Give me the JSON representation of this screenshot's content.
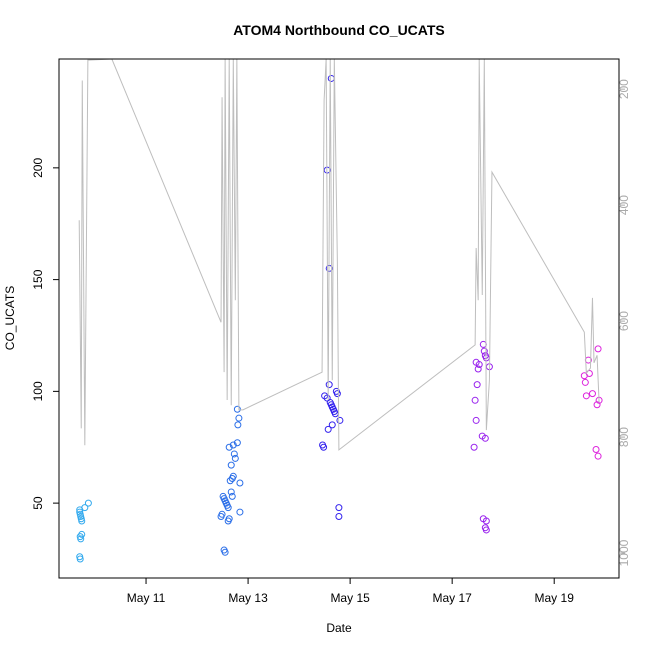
{
  "chart_data": {
    "type": "scatter",
    "title": "ATOM4 Northbound CO_UCATS",
    "x_label": "Date",
    "y_label": "CO_UCATS",
    "xlim": [
      9.294,
      20.27
    ],
    "xticks": [
      {
        "value": 11,
        "label": "May 11"
      },
      {
        "value": 13,
        "label": "May 13"
      },
      {
        "value": 15,
        "label": "May 15"
      },
      {
        "value": 17,
        "label": "May 17"
      },
      {
        "value": 19,
        "label": "May 19"
      }
    ],
    "ylim": [
      16.5,
      248.7
    ],
    "yticks": [
      50,
      100,
      150,
      200
    ],
    "y2lim": [
      1043,
      148
    ],
    "y2ticks": [
      200,
      400,
      600,
      800,
      1000
    ],
    "series": [
      {
        "color": "#33aaee",
        "x": [
          9.7,
          9.7,
          9.71,
          9.72,
          9.73,
          9.74,
          9.71,
          9.72,
          9.74,
          9.7,
          9.71,
          9.8,
          9.87
        ],
        "values": [
          46,
          47,
          45,
          44,
          43,
          42,
          35,
          34,
          36,
          26,
          25,
          48,
          50
        ]
      },
      {
        "color": "#2a6ee8",
        "x": [
          12.47,
          12.49,
          12.51,
          12.53,
          12.55,
          12.57,
          12.59,
          12.61,
          12.53,
          12.55,
          12.63,
          12.61,
          12.67,
          12.65,
          12.69,
          12.71,
          12.67,
          12.75,
          12.73,
          12.63,
          12.71,
          12.79,
          12.8,
          12.82,
          12.79,
          12.84,
          12.84,
          12.69
        ],
        "values": [
          44,
          45,
          53,
          52,
          51,
          50,
          49,
          48,
          29,
          28,
          43,
          42,
          55,
          60,
          61,
          62,
          67,
          70,
          72,
          75,
          76,
          77,
          85,
          88,
          92,
          59,
          46,
          53
        ]
      },
      {
        "color": "#3322ee",
        "x": [
          14.46,
          14.48,
          14.5,
          14.55,
          14.59,
          14.61,
          14.63,
          14.65,
          14.67,
          14.69,
          14.71,
          14.73,
          14.65,
          14.57,
          14.55,
          14.59,
          14.63,
          14.78,
          14.78,
          14.8,
          14.75
        ],
        "values": [
          76,
          75,
          98,
          97,
          103,
          95,
          94,
          93,
          92,
          91,
          90,
          100,
          85,
          83,
          199,
          155,
          240,
          48,
          44,
          87,
          99
        ]
      },
      {
        "color": "#9922ee",
        "x": [
          17.43,
          17.47,
          17.45,
          17.49,
          17.51,
          17.53,
          17.61,
          17.63,
          17.65,
          17.67,
          17.59,
          17.65,
          17.61,
          17.67,
          17.65,
          17.67,
          17.47,
          17.73
        ],
        "values": [
          75,
          87,
          96,
          103,
          110,
          112,
          121,
          118,
          116,
          115,
          80,
          79,
          43,
          42,
          39,
          38,
          113,
          111
        ]
      },
      {
        "color": "#dd22dd",
        "x": [
          19.59,
          19.61,
          19.63,
          19.69,
          19.67,
          19.75,
          19.84,
          19.88,
          19.86,
          19.82,
          19.86
        ],
        "values": [
          107,
          104,
          98,
          108,
          114,
          99,
          94,
          96,
          119,
          74,
          71
        ]
      },
      {
        "axis": "y2",
        "color": "#bebebe",
        "x": [
          9.69,
          9.73,
          9.75,
          9.8,
          9.86,
          10.33,
          12.47,
          12.49,
          12.53,
          12.55,
          12.59,
          12.63,
          12.67,
          12.71,
          12.75,
          12.78,
          12.82,
          12.9,
          14.45,
          14.49,
          14.53,
          14.57,
          14.61,
          14.65,
          14.69,
          14.75,
          14.78,
          17.45,
          17.47,
          17.51,
          17.53,
          17.59,
          17.63,
          17.67,
          17.73,
          17.78,
          19.59,
          19.63,
          19.71,
          19.75,
          19.78,
          19.84,
          19.88
        ],
        "values": [
          426,
          785,
          185,
          814,
          150,
          148,
          602,
          214,
          688,
          148,
          736,
          148,
          745,
          148,
          564,
          148,
          753,
          753,
          688,
          219,
          148,
          736,
          148,
          702,
          148,
          498,
          822,
          641,
          474,
          564,
          148,
          555,
          148,
          788,
          702,
          343,
          619,
          690,
          681,
          560,
          672,
          659,
          740
        ]
      }
    ]
  }
}
